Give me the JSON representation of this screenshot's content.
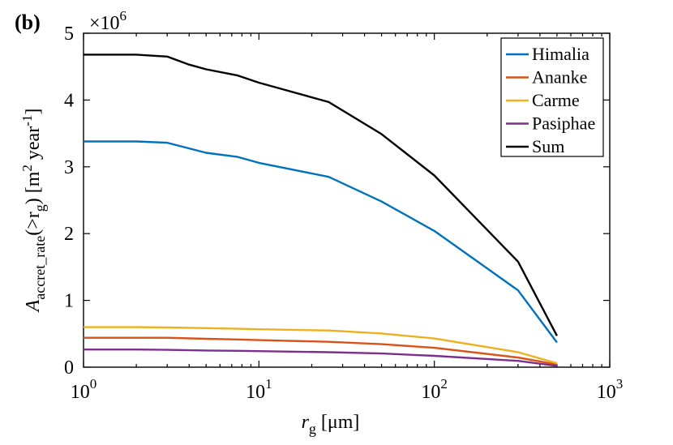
{
  "chart_data": {
    "type": "line",
    "panel_label": "(b)",
    "x_scale": "log",
    "xlim": [
      1,
      1000
    ],
    "ylim": [
      0,
      5000000
    ],
    "y_multiplier_label": "×10^6",
    "y_multiplier_base": "×10",
    "y_multiplier_exp": "6",
    "xlabel": {
      "main": "r",
      "sub": "g",
      "rest": " [μm]"
    },
    "ylabel": {
      "main": "A",
      "sub": "accret_rate",
      "mid": "(>r",
      "sub2": "g",
      "rest": ") [m",
      "sup": "2",
      "rest2": " year",
      "sup2": "-1",
      "end": "]"
    },
    "x_ticks": [
      {
        "value": 1,
        "base": "10",
        "exp": "0"
      },
      {
        "value": 10,
        "base": "10",
        "exp": "1"
      },
      {
        "value": 100,
        "base": "10",
        "exp": "2"
      },
      {
        "value": 1000,
        "base": "10",
        "exp": "3"
      }
    ],
    "y_ticks": [
      {
        "value": 0,
        "label": "0"
      },
      {
        "value": 1000000,
        "label": "1"
      },
      {
        "value": 2000000,
        "label": "2"
      },
      {
        "value": 3000000,
        "label": "3"
      },
      {
        "value": 4000000,
        "label": "4"
      },
      {
        "value": 5000000,
        "label": "5"
      }
    ],
    "legend_position": "top-right",
    "series": [
      {
        "name": "Himalia",
        "color": "#0072BD",
        "x": [
          1,
          2,
          3,
          5,
          7.5,
          10,
          25,
          50,
          100,
          300,
          500
        ],
        "values": [
          3380000,
          3380000,
          3360000,
          3210000,
          3150000,
          3060000,
          2850000,
          2480000,
          2040000,
          1150000,
          370000
        ]
      },
      {
        "name": "Ananke",
        "color": "#D95319",
        "x": [
          1,
          2,
          3,
          5,
          7.5,
          10,
          25,
          50,
          100,
          300,
          500
        ],
        "values": [
          440000,
          440000,
          440000,
          425000,
          415000,
          405000,
          380000,
          345000,
          290000,
          145000,
          40000
        ]
      },
      {
        "name": "Carme",
        "color": "#EDB120",
        "x": [
          1,
          2,
          3,
          5,
          7.5,
          10,
          25,
          50,
          100,
          300,
          500
        ],
        "values": [
          600000,
          600000,
          595000,
          585000,
          575000,
          568000,
          550000,
          505000,
          430000,
          225000,
          60000
        ]
      },
      {
        "name": "Pasiphae",
        "color": "#7E2F8E",
        "x": [
          1,
          2,
          3,
          5,
          7.5,
          10,
          25,
          50,
          100,
          300,
          500
        ],
        "values": [
          265000,
          265000,
          260000,
          250000,
          245000,
          240000,
          225000,
          205000,
          170000,
          95000,
          20000
        ]
      },
      {
        "name": "Sum",
        "color": "#000000",
        "x": [
          1,
          2,
          3,
          4,
          5,
          7.5,
          10,
          25,
          50,
          100,
          300,
          500
        ],
        "values": [
          4680000,
          4680000,
          4650000,
          4530000,
          4460000,
          4370000,
          4260000,
          3970000,
          3490000,
          2870000,
          1580000,
          470000
        ]
      }
    ]
  }
}
